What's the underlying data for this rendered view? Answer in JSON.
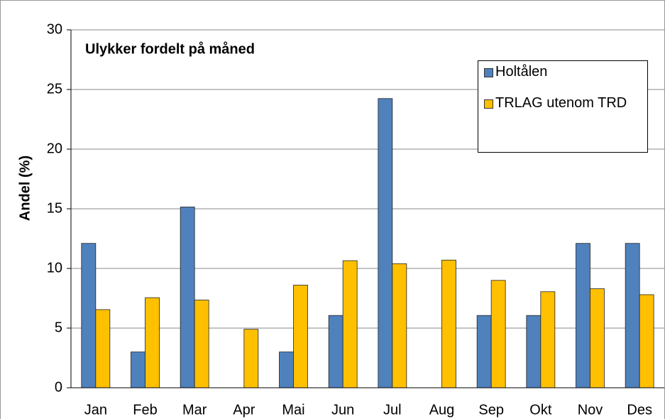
{
  "chart_data": {
    "type": "bar",
    "title": "Ulykker fordelt på måned",
    "y_label": "Andel (%)",
    "categories": [
      "Jan",
      "Feb",
      "Mar",
      "Apr",
      "Mai",
      "Jun",
      "Jul",
      "Aug",
      "Sep",
      "Okt",
      "Nov",
      "Des"
    ],
    "series": [
      {
        "name": "Holtålen",
        "color": "#4f81bd",
        "values": [
          12.1,
          3.0,
          15.15,
          0,
          3.0,
          6.06,
          24.24,
          0,
          6.06,
          6.06,
          12.1,
          12.1
        ]
      },
      {
        "name": "TRLAG utenom TRD",
        "color": "#ffc000",
        "values": [
          6.55,
          7.55,
          7.35,
          4.9,
          8.6,
          10.65,
          10.4,
          10.7,
          9.0,
          8.05,
          8.3,
          7.8
        ]
      }
    ],
    "ylim": [
      0,
      30
    ],
    "yticks": [
      0,
      5,
      10,
      15,
      20,
      25,
      30
    ],
    "grid": true,
    "legend": "upper right"
  }
}
